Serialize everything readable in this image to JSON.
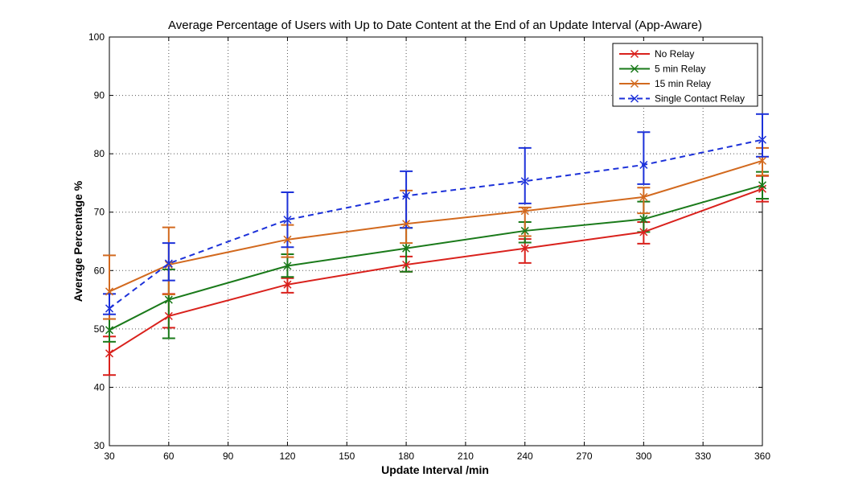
{
  "chart_data": {
    "type": "line",
    "title": "Average Percentage of Users with Up to Date Content at the End of an Update Interval (App-Aware)",
    "xlabel": "Update Interval /min",
    "ylabel": "Average Percentage %",
    "xlim": [
      30,
      360
    ],
    "ylim": [
      30,
      100
    ],
    "xticks": [
      30,
      60,
      90,
      120,
      150,
      180,
      210,
      240,
      270,
      300,
      330,
      360
    ],
    "yticks": [
      30,
      40,
      50,
      60,
      70,
      80,
      90,
      100
    ],
    "grid": true,
    "legend_position": "top-right",
    "x": [
      30,
      60,
      120,
      180,
      240,
      300,
      360
    ],
    "series": [
      {
        "name": "No Relay",
        "color": "#d9211c",
        "dashed": false,
        "values": [
          45.8,
          52.2,
          57.6,
          61.0,
          63.8,
          66.6,
          74.0
        ],
        "err_low": [
          42.1,
          50.2,
          56.2,
          59.8,
          61.3,
          64.6,
          71.8
        ],
        "err_high": [
          48.7,
          56.0,
          58.7,
          62.4,
          65.4,
          68.3,
          76.2
        ]
      },
      {
        "name": "5 min Relay",
        "color": "#1a7a1a",
        "dashed": false,
        "values": [
          49.8,
          55.0,
          60.8,
          63.8,
          66.8,
          68.8,
          74.6
        ],
        "err_low": [
          47.8,
          48.4,
          58.9,
          59.8,
          64.8,
          66.6,
          72.3
        ],
        "err_high": [
          51.7,
          60.2,
          62.8,
          67.3,
          68.3,
          71.8,
          76.9
        ]
      },
      {
        "name": "15 min Relay",
        "color": "#d2691e",
        "dashed": false,
        "values": [
          56.4,
          61.0,
          65.3,
          68.0,
          70.2,
          72.6,
          78.8
        ],
        "err_low": [
          51.7,
          55.9,
          62.3,
          64.7,
          65.9,
          69.8,
          76.3
        ],
        "err_high": [
          62.6,
          67.4,
          67.8,
          73.7,
          70.8,
          74.2,
          81.0
        ]
      },
      {
        "name": "Single Contact Relay",
        "color": "#1c31d9",
        "dashed": true,
        "values": [
          53.5,
          61.2,
          68.7,
          72.8,
          75.3,
          78.1,
          82.4
        ],
        "err_low": [
          52.5,
          58.3,
          64.0,
          67.3,
          71.5,
          74.8,
          79.5
        ],
        "err_high": [
          56.0,
          64.7,
          73.4,
          77.0,
          81.0,
          83.7,
          86.8
        ]
      }
    ]
  }
}
